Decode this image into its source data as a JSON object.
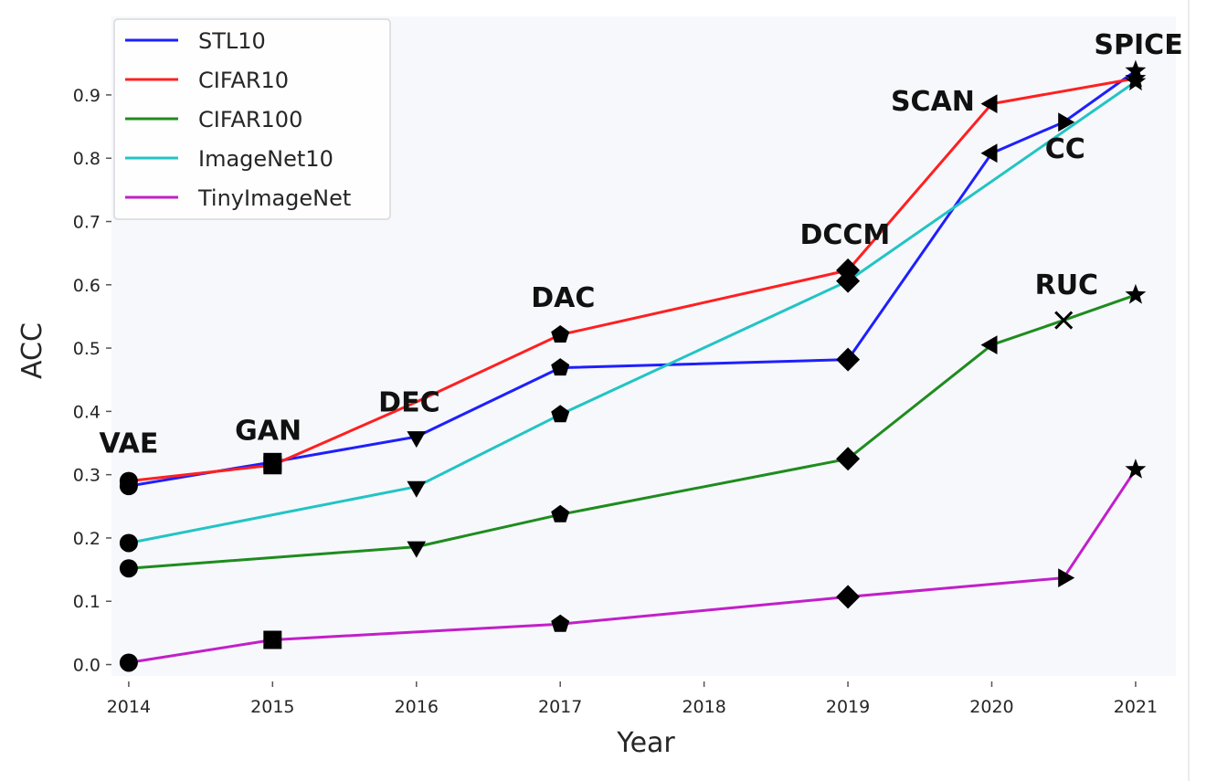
{
  "chart_data": {
    "type": "line",
    "title": "",
    "xlabel": "Year",
    "ylabel": "ACC",
    "xlim": [
      2013.88,
      2021.28
    ],
    "ylim": [
      -0.018,
      1.024
    ],
    "x_ticks": [
      2014,
      2015,
      2016,
      2017,
      2018,
      2019,
      2020,
      2021
    ],
    "x_tick_labels": [
      "2014",
      "2015",
      "2016",
      "2017",
      "2018",
      "2019",
      "2020",
      "2021"
    ],
    "y_ticks": [
      0.0,
      0.1,
      0.2,
      0.3,
      0.4,
      0.5,
      0.6,
      0.7,
      0.8,
      0.9
    ],
    "y_tick_labels": [
      "0.0",
      "0.1",
      "0.2",
      "0.3",
      "0.4",
      "0.5",
      "0.6",
      "0.7",
      "0.8",
      "0.9"
    ],
    "grid": false,
    "legend_position": "top-left",
    "background_color": "#F7F8FC",
    "series": [
      {
        "name": "STL10",
        "color": "#1f1fff",
        "points": [
          {
            "x": 2014,
            "y": 0.282,
            "marker": "circle"
          },
          {
            "x": 2015,
            "y": 0.32,
            "marker": "square"
          },
          {
            "x": 2016,
            "y": 0.36,
            "marker": "triangle-down"
          },
          {
            "x": 2017,
            "y": 0.469,
            "marker": "pentagon"
          },
          {
            "x": 2019,
            "y": 0.482,
            "marker": "diamond"
          },
          {
            "x": 2020,
            "y": 0.808,
            "marker": "triangle-left"
          },
          {
            "x": 2020.5,
            "y": 0.857,
            "marker": "triangle-right"
          },
          {
            "x": 2021,
            "y": 0.938,
            "marker": "star"
          }
        ]
      },
      {
        "name": "CIFAR10",
        "color": "#ff2020",
        "points": [
          {
            "x": 2014,
            "y": 0.29,
            "marker": "circle"
          },
          {
            "x": 2015,
            "y": 0.315,
            "marker": "square"
          },
          {
            "x": 2016,
            "y": 0.415,
            "marker": "none"
          },
          {
            "x": 2017,
            "y": 0.521,
            "marker": "pentagon"
          },
          {
            "x": 2019,
            "y": 0.623,
            "marker": "diamond"
          },
          {
            "x": 2020,
            "y": 0.886,
            "marker": "triangle-left"
          },
          {
            "x": 2021,
            "y": 0.926,
            "marker": "star"
          }
        ]
      },
      {
        "name": "CIFAR100",
        "color": "#1e8c1e",
        "points": [
          {
            "x": 2014,
            "y": 0.152,
            "marker": "circle"
          },
          {
            "x": 2016,
            "y": 0.186,
            "marker": "triangle-down"
          },
          {
            "x": 2017,
            "y": 0.237,
            "marker": "pentagon"
          },
          {
            "x": 2019,
            "y": 0.325,
            "marker": "diamond"
          },
          {
            "x": 2020,
            "y": 0.505,
            "marker": "triangle-left"
          },
          {
            "x": 2020.5,
            "y": 0.544,
            "marker": "x"
          },
          {
            "x": 2021,
            "y": 0.584,
            "marker": "star"
          }
        ]
      },
      {
        "name": "ImageNet10",
        "color": "#22c4c4",
        "points": [
          {
            "x": 2014,
            "y": 0.192,
            "marker": "circle"
          },
          {
            "x": 2016,
            "y": 0.281,
            "marker": "triangle-down"
          },
          {
            "x": 2017,
            "y": 0.395,
            "marker": "pentagon"
          },
          {
            "x": 2019,
            "y": 0.606,
            "marker": "diamond"
          },
          {
            "x": 2021,
            "y": 0.921,
            "marker": "star"
          }
        ]
      },
      {
        "name": "TinyImageNet",
        "color": "#c21fc8",
        "points": [
          {
            "x": 2014,
            "y": 0.003,
            "marker": "circle"
          },
          {
            "x": 2015,
            "y": 0.039,
            "marker": "square"
          },
          {
            "x": 2017,
            "y": 0.064,
            "marker": "pentagon"
          },
          {
            "x": 2019,
            "y": 0.107,
            "marker": "diamond"
          },
          {
            "x": 2020.5,
            "y": 0.137,
            "marker": "triangle-right"
          },
          {
            "x": 2021,
            "y": 0.308,
            "marker": "star"
          }
        ]
      }
    ],
    "annotations": [
      {
        "text": "VAE",
        "x": 2014,
        "y": 0.335
      },
      {
        "text": "GAN",
        "x": 2014.97,
        "y": 0.355
      },
      {
        "text": "DEC",
        "x": 2015.95,
        "y": 0.4
      },
      {
        "text": "DAC",
        "x": 2017.02,
        "y": 0.565
      },
      {
        "text": "DCCM",
        "x": 2018.98,
        "y": 0.665
      },
      {
        "text": "SCAN",
        "x": 2019.59,
        "y": 0.875
      },
      {
        "text": "CC",
        "x": 2020.51,
        "y": 0.8
      },
      {
        "text": "RUC",
        "x": 2020.52,
        "y": 0.585
      },
      {
        "text": "SPICE",
        "x": 2021.02,
        "y": 0.965
      }
    ]
  }
}
